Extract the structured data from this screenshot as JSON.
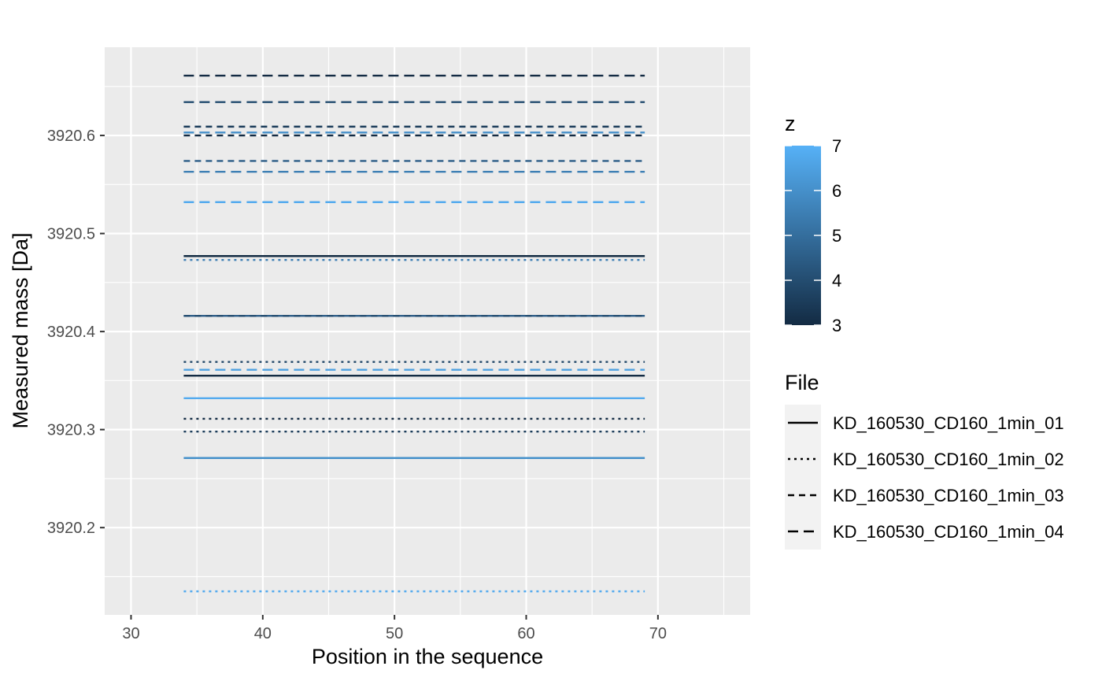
{
  "chart_data": {
    "type": "line",
    "title": "",
    "xlabel": "Position in the sequence",
    "ylabel": "Measured mass [Da]",
    "xlim": [
      28,
      77
    ],
    "ylim": [
      3920.111,
      3920.69
    ],
    "x_ticks": [
      30,
      40,
      50,
      60,
      70
    ],
    "y_ticks": [
      3920.2,
      3920.3,
      3920.4,
      3920.5,
      3920.6
    ],
    "grid": true,
    "color_scale": {
      "title": "z",
      "min": 3,
      "max": 7,
      "ticks": [
        3,
        4,
        5,
        6,
        7
      ],
      "low_color": "#132B43",
      "high_color": "#56B1F7"
    },
    "linetype_legend": {
      "title": "File",
      "entries": [
        {
          "label": "KD_160530_CD160_1min_01",
          "dash": "solid"
        },
        {
          "label": "KD_160530_CD160_1min_02",
          "dash": "dotted"
        },
        {
          "label": "KD_160530_CD160_1min_03",
          "dash": "dashed"
        },
        {
          "label": "KD_160530_CD160_1min_04",
          "dash": "longdash"
        }
      ]
    },
    "segments": [
      {
        "file": 0,
        "z": 3.0,
        "mass": 3920.477,
        "x_start": 34,
        "x_end": 69
      },
      {
        "file": 0,
        "z": 4.5,
        "mass": 3920.416,
        "x_start": 34,
        "x_end": 69
      },
      {
        "file": 0,
        "z": 3.0,
        "mass": 3920.355,
        "x_start": 34,
        "x_end": 69
      },
      {
        "file": 0,
        "z": 6.8,
        "mass": 3920.332,
        "x_start": 34,
        "x_end": 69
      },
      {
        "file": 0,
        "z": 6.0,
        "mass": 3920.271,
        "x_start": 34,
        "x_end": 69
      },
      {
        "file": 1,
        "z": 5.5,
        "mass": 3920.473,
        "x_start": 34,
        "x_end": 69
      },
      {
        "file": 1,
        "z": 3.8,
        "mass": 3920.369,
        "x_start": 34,
        "x_end": 69
      },
      {
        "file": 1,
        "z": 3.0,
        "mass": 3920.311,
        "x_start": 34,
        "x_end": 69
      },
      {
        "file": 1,
        "z": 3.5,
        "mass": 3920.298,
        "x_start": 34,
        "x_end": 69
      },
      {
        "file": 1,
        "z": 6.8,
        "mass": 3920.135,
        "x_start": 34,
        "x_end": 69
      },
      {
        "file": 2,
        "z": 3.5,
        "mass": 3920.609,
        "x_start": 34,
        "x_end": 69
      },
      {
        "file": 2,
        "z": 3.0,
        "mass": 3920.6,
        "x_start": 34,
        "x_end": 69
      },
      {
        "file": 2,
        "z": 4.5,
        "mass": 3920.574,
        "x_start": 34,
        "x_end": 69
      },
      {
        "file": 2,
        "z": 4.0,
        "mass": 3920.416,
        "x_start": 34,
        "x_end": 69
      },
      {
        "file": 3,
        "z": 3.0,
        "mass": 3920.661,
        "x_start": 34,
        "x_end": 69
      },
      {
        "file": 3,
        "z": 4.0,
        "mass": 3920.634,
        "x_start": 34,
        "x_end": 69
      },
      {
        "file": 3,
        "z": 6.0,
        "mass": 3920.603,
        "x_start": 34,
        "x_end": 69
      },
      {
        "file": 3,
        "z": 5.5,
        "mass": 3920.563,
        "x_start": 34,
        "x_end": 69
      },
      {
        "file": 3,
        "z": 6.8,
        "mass": 3920.532,
        "x_start": 34,
        "x_end": 69
      },
      {
        "file": 3,
        "z": 6.5,
        "mass": 3920.361,
        "x_start": 34,
        "x_end": 69
      }
    ]
  }
}
